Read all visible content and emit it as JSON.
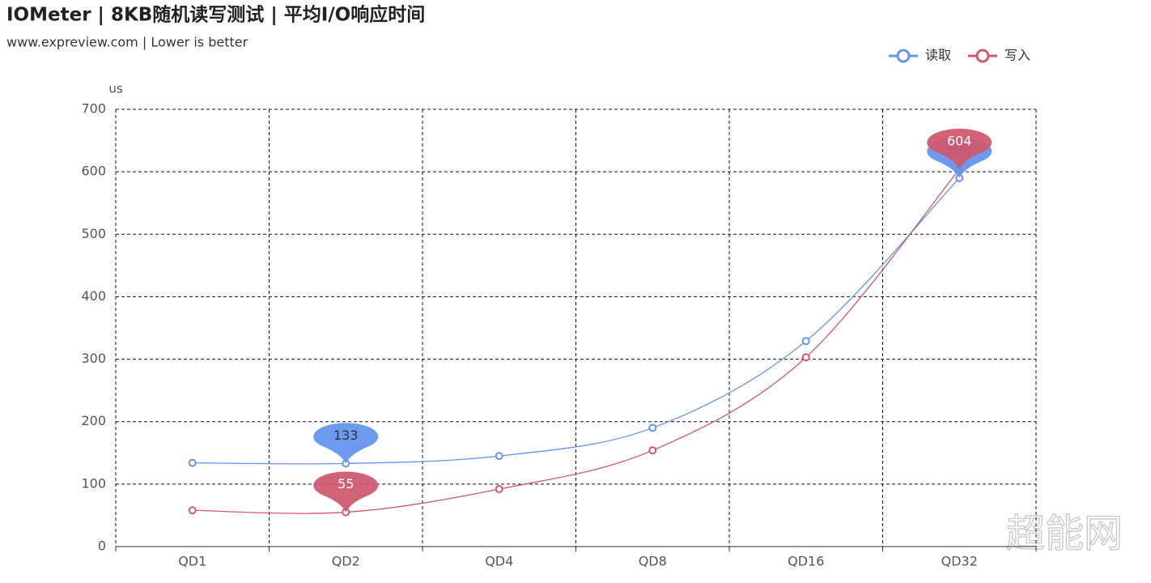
{
  "chart_data": {
    "type": "line",
    "title": "IOMeter | 8KB随机读写测试 | 平均I/O响应时间",
    "subtitle": "www.expreview.com | Lower is better",
    "y_axis_label": "us",
    "watermark": "超能网",
    "categories": [
      "QD1",
      "QD2",
      "QD4",
      "QD8",
      "QD16",
      "QD32"
    ],
    "series": [
      {
        "name": "读取",
        "color": "#6495ed",
        "values": [
          134,
          133,
          145,
          190,
          329,
          590
        ]
      },
      {
        "name": "写入",
        "color": "#cf5a70",
        "values": [
          58,
          55,
          92,
          154,
          303,
          604
        ]
      }
    ],
    "ylim": [
      0,
      700
    ],
    "yticks": [
      0,
      100,
      200,
      300,
      400,
      500,
      600,
      700
    ],
    "grid": true,
    "smooth": true,
    "legend": "top-right"
  }
}
